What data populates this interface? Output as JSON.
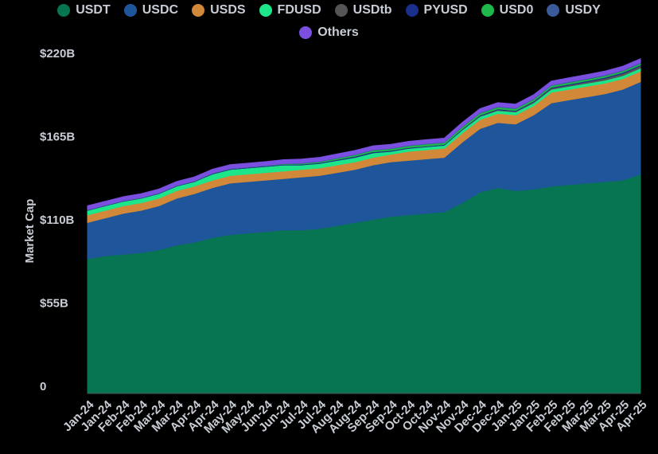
{
  "chart_data": {
    "type": "stacked-area",
    "y_label": "Market Cap",
    "categories": [
      "Jan-24",
      "Jan-24",
      "Feb-24",
      "Feb-24",
      "Mar-24",
      "Mar-24",
      "Apr-24",
      "Apr-24",
      "May-24",
      "May-24",
      "Jun-24",
      "Jun-24",
      "Jul-24",
      "Jul-24",
      "Aug-24",
      "Aug-24",
      "Sep-24",
      "Sep-24",
      "Oct-24",
      "Oct-24",
      "Nov-24",
      "Nov-24",
      "Dec-24",
      "Dec-24",
      "Jan-25",
      "Jan-25",
      "Feb-25",
      "Feb-25",
      "Mar-25",
      "Mar-25",
      "Apr-25",
      "Apr-25"
    ],
    "ylim": [
      0,
      220
    ],
    "yticks": [
      0,
      {
        "value": 55,
        "label": "$55B"
      },
      {
        "value": 110,
        "label": "$110B"
      },
      {
        "value": 165,
        "label": "$165B"
      },
      {
        "value": 220,
        "label": "$220B"
      }
    ],
    "series": [
      {
        "name": "USDT",
        "color": "#077452",
        "values": [
          89,
          91,
          92,
          93,
          95,
          98,
          100,
          103,
          105,
          106,
          107,
          108,
          108,
          109,
          111,
          113,
          115,
          117,
          118,
          119,
          120,
          126,
          133,
          136,
          134,
          135,
          137,
          138,
          139,
          140,
          141,
          145
        ]
      },
      {
        "name": "USDC",
        "color": "#1f559b",
        "values": [
          24,
          25,
          27,
          28,
          29,
          31,
          32,
          33,
          34,
          34,
          34,
          34,
          35,
          35,
          35,
          35,
          36,
          36,
          36,
          36,
          36,
          40,
          42,
          43,
          44,
          49,
          55,
          56,
          57,
          58,
          60,
          61
        ]
      },
      {
        "name": "USDS",
        "color": "#d18838",
        "values": [
          5,
          5,
          5,
          5,
          5,
          5,
          5,
          5,
          5,
          5,
          5,
          5,
          5,
          5,
          5,
          5,
          5,
          5,
          6,
          6,
          6,
          6,
          6,
          6,
          6,
          6,
          7,
          7,
          7,
          7,
          7,
          7
        ]
      },
      {
        "name": "FDUSD",
        "color": "#1de68a",
        "values": [
          3,
          3,
          3,
          3,
          3,
          3,
          3,
          4,
          4,
          4,
          4,
          4,
          3,
          3,
          3,
          3,
          3,
          2,
          2,
          2,
          2,
          2,
          2,
          2,
          2,
          2,
          2,
          2,
          2,
          2,
          2,
          2
        ]
      },
      {
        "name": "USDtb",
        "color": "#555555",
        "values": [
          0,
          0,
          0,
          0,
          0,
          0,
          0,
          0,
          0,
          0,
          0,
          0,
          0,
          0,
          0,
          0,
          0,
          0,
          0,
          0,
          0,
          0.2,
          0.4,
          0.5,
          0.5,
          0.6,
          0.7,
          0.8,
          1,
          1.2,
          1.4,
          1.4
        ]
      },
      {
        "name": "PYUSD",
        "color": "#1a2e8c",
        "values": [
          0.3,
          0.3,
          0.3,
          0.3,
          0.3,
          0.3,
          0.3,
          0.4,
          0.4,
          0.4,
          0.4,
          0.4,
          0.5,
          0.5,
          0.6,
          0.7,
          0.7,
          0.6,
          0.5,
          0.5,
          0.5,
          0.5,
          0.5,
          0.5,
          0.5,
          0.5,
          0.6,
          0.6,
          0.6,
          0.7,
          0.7,
          0.7
        ]
      },
      {
        "name": "USD0",
        "color": "#1fb84a",
        "values": [
          0,
          0,
          0,
          0,
          0,
          0,
          0,
          0,
          0,
          0,
          0,
          0.3,
          0.5,
          0.6,
          0.8,
          1,
          1,
          1.1,
          1.2,
          1.3,
          1.3,
          1.3,
          1.3,
          1.2,
          1.2,
          1.2,
          1.1,
          1.1,
          1,
          1,
          1,
          1
        ]
      },
      {
        "name": "USDY",
        "color": "#3b5a9a",
        "values": [
          0.2,
          0.2,
          0.2,
          0.2,
          0.3,
          0.3,
          0.3,
          0.3,
          0.3,
          0.3,
          0.3,
          0.3,
          0.4,
          0.4,
          0.4,
          0.4,
          0.4,
          0.4,
          0.4,
          0.4,
          0.4,
          0.5,
          0.5,
          0.5,
          0.5,
          0.5,
          0.5,
          0.6,
          0.6,
          0.6,
          0.6,
          0.6
        ]
      },
      {
        "name": "Others",
        "color": "#7b4fe0",
        "values": [
          2.5,
          2.5,
          2.5,
          2.5,
          2.5,
          2.5,
          2.5,
          2.5,
          2.5,
          2.5,
          2.5,
          2.5,
          2.5,
          2.5,
          2.5,
          2.5,
          2.5,
          2.5,
          2.5,
          2.5,
          2.5,
          2.5,
          2.5,
          2.5,
          2.5,
          2.5,
          2.5,
          2.5,
          2.5,
          2.5,
          2.5,
          2.5
        ]
      }
    ]
  }
}
